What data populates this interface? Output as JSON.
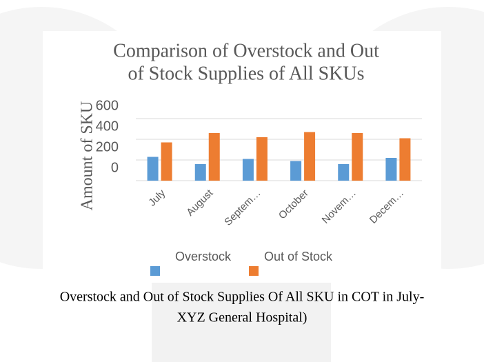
{
  "chart_data": {
    "type": "bar",
    "title": [
      "Comparison of Overstock and Out",
      "of Stock Supplies of All SKUs"
    ],
    "y_label": "Amount of SKU",
    "categories": [
      "July",
      "August",
      "Septem…",
      "October",
      "Novem…",
      "Decem…"
    ],
    "series": [
      {
        "name": "Overstock",
        "color": "#5b9bd5",
        "values": [
          230,
          160,
          210,
          190,
          160,
          220
        ]
      },
      {
        "name": "Out of Stock",
        "color": "#ed7d31",
        "values": [
          370,
          460,
          420,
          470,
          460,
          410
        ]
      }
    ],
    "ylim": [
      0,
      600
    ],
    "yticks": [
      0,
      200,
      400,
      600
    ],
    "grid": true,
    "legend": "bottom"
  },
  "caption": [
    "Overstock and Out of Stock Supplies Of All SKU in COT in July-",
    "XYZ General Hospital)"
  ]
}
